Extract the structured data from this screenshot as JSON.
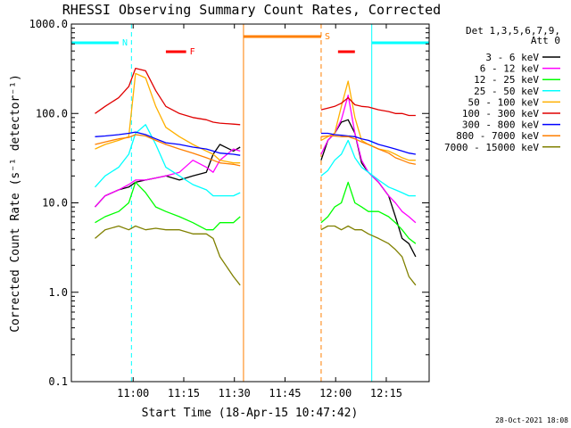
{
  "chart_data": {
    "type": "line",
    "title": "RHESSI Observing Summary Count Rates, Corrected",
    "xlabel": "Start Time (18-Apr-15 10:47:42)",
    "ylabel": "Corrected Count Rate (s⁻¹ detector⁻¹)",
    "y_scale": "log",
    "ylim": [
      0.1,
      1000
    ],
    "xlim_minutes_from_start": [
      -6,
      100
    ],
    "x_ticks": [
      {
        "label": "11:00",
        "value": 12.3
      },
      {
        "label": "11:15",
        "value": 27.3
      },
      {
        "label": "11:30",
        "value": 42.3
      },
      {
        "label": "11:45",
        "value": 57.3
      },
      {
        "label": "12:00",
        "value": 72.3
      },
      {
        "label": "12:15",
        "value": 87.3
      }
    ],
    "y_ticks": [
      {
        "label": "0.1",
        "value": 0.1
      },
      {
        "label": "1.0",
        "value": 1
      },
      {
        "label": "10.0",
        "value": 10
      },
      {
        "label": "100.0",
        "value": 100
      },
      {
        "label": "1000.0",
        "value": 1000
      }
    ],
    "legend": {
      "placement": "right",
      "header": [
        "Det 1,3,5,6,7,9,",
        "Att 0"
      ],
      "entries": [
        {
          "label": "3 - 6 keV",
          "color": "#000000"
        },
        {
          "label": "6 - 12 keV",
          "color": "#ff00ff"
        },
        {
          "label": "12 - 25 keV",
          "color": "#00ff00"
        },
        {
          "label": "25 - 50 keV",
          "color": "#00ffff"
        },
        {
          "label": "50 - 100 keV",
          "color": "#ffb000"
        },
        {
          "label": "100 - 300 keV",
          "color": "#e00000"
        },
        {
          "label": "300 - 800 keV",
          "color": "#0000ff"
        },
        {
          "label": "800 - 7000 keV",
          "color": "#ff7f00"
        },
        {
          "label": "7000 - 15000 keV",
          "color": "#808000"
        }
      ]
    },
    "intervals": [
      {
        "label": "N",
        "color": "#00ffff",
        "segments": [
          [
            -6,
            8
          ],
          [
            83,
            100
          ]
        ]
      },
      {
        "label": "F",
        "color": "#ff0000",
        "segments": [
          [
            22,
            28
          ],
          [
            73,
            78
          ]
        ]
      },
      {
        "label": "S",
        "color": "#ff7f00",
        "segments": [
          [
            45,
            68
          ]
        ]
      }
    ],
    "vertical_markers": [
      {
        "x": -6,
        "color": "#00ffff",
        "style": "solid"
      },
      {
        "x": 11.8,
        "color": "#00ffff",
        "style": "dashed"
      },
      {
        "x": 45,
        "color": "#ff7f00",
        "style": "solid"
      },
      {
        "x": 68,
        "color": "#ff7f00",
        "style": "dashed"
      },
      {
        "x": 83,
        "color": "#00ffff",
        "style": "solid"
      },
      {
        "x": 100,
        "color": "#00ffff",
        "style": "dashed"
      }
    ],
    "series": [
      {
        "name": "3 - 6 keV",
        "color": "#000000",
        "points": [
          [
            1,
            9
          ],
          [
            4,
            12
          ],
          [
            8,
            14
          ],
          [
            11,
            15
          ],
          [
            13,
            17
          ],
          [
            16,
            18
          ],
          [
            19,
            19
          ],
          [
            22,
            20
          ],
          [
            26,
            18
          ],
          [
            30,
            20
          ],
          [
            34,
            22
          ],
          [
            36,
            35
          ],
          [
            38,
            45
          ],
          [
            42,
            38
          ],
          [
            44,
            42
          ],
          null,
          [
            68,
            30
          ],
          [
            70,
            50
          ],
          [
            72,
            60
          ],
          [
            74,
            80
          ],
          [
            76,
            85
          ],
          [
            78,
            60
          ],
          [
            80,
            28
          ],
          [
            82,
            22
          ],
          [
            85,
            17
          ],
          [
            88,
            12
          ],
          [
            90,
            7
          ],
          [
            92,
            4
          ],
          [
            94,
            3.5
          ],
          [
            96,
            2.5
          ]
        ]
      },
      {
        "name": "6 - 12 keV",
        "color": "#ff00ff",
        "points": [
          [
            1,
            9
          ],
          [
            4,
            12
          ],
          [
            8,
            14
          ],
          [
            11,
            16
          ],
          [
            13,
            18
          ],
          [
            16,
            18
          ],
          [
            19,
            19
          ],
          [
            22,
            20
          ],
          [
            26,
            22
          ],
          [
            30,
            30
          ],
          [
            34,
            25
          ],
          [
            36,
            22
          ],
          [
            38,
            30
          ],
          [
            42,
            40
          ],
          [
            44,
            38
          ],
          null,
          [
            68,
            35
          ],
          [
            70,
            50
          ],
          [
            72,
            60
          ],
          [
            74,
            85
          ],
          [
            76,
            160
          ],
          [
            78,
            60
          ],
          [
            80,
            30
          ],
          [
            82,
            22
          ],
          [
            85,
            17
          ],
          [
            88,
            12
          ],
          [
            90,
            10
          ],
          [
            92,
            8
          ],
          [
            94,
            7
          ],
          [
            96,
            6
          ]
        ]
      },
      {
        "name": "12 - 25 keV",
        "color": "#00ff00",
        "points": [
          [
            1,
            6
          ],
          [
            4,
            7
          ],
          [
            8,
            8
          ],
          [
            11,
            10
          ],
          [
            13,
            17
          ],
          [
            16,
            13
          ],
          [
            19,
            9
          ],
          [
            22,
            8
          ],
          [
            26,
            7
          ],
          [
            30,
            6
          ],
          [
            34,
            5
          ],
          [
            36,
            5
          ],
          [
            38,
            6
          ],
          [
            42,
            6
          ],
          [
            44,
            7
          ],
          null,
          [
            68,
            6
          ],
          [
            70,
            7
          ],
          [
            72,
            9
          ],
          [
            74,
            10
          ],
          [
            76,
            17
          ],
          [
            78,
            10
          ],
          [
            80,
            9
          ],
          [
            82,
            8
          ],
          [
            85,
            8
          ],
          [
            88,
            7
          ],
          [
            90,
            6
          ],
          [
            92,
            5
          ],
          [
            94,
            4
          ],
          [
            96,
            3.5
          ]
        ]
      },
      {
        "name": "25 - 50 keV",
        "color": "#00ffff",
        "points": [
          [
            1,
            15
          ],
          [
            4,
            20
          ],
          [
            8,
            25
          ],
          [
            11,
            35
          ],
          [
            13,
            60
          ],
          [
            16,
            75
          ],
          [
            19,
            45
          ],
          [
            22,
            25
          ],
          [
            26,
            20
          ],
          [
            30,
            16
          ],
          [
            34,
            14
          ],
          [
            36,
            12
          ],
          [
            38,
            12
          ],
          [
            42,
            12
          ],
          [
            44,
            13
          ],
          null,
          [
            68,
            20
          ],
          [
            70,
            23
          ],
          [
            72,
            30
          ],
          [
            74,
            35
          ],
          [
            76,
            50
          ],
          [
            78,
            32
          ],
          [
            80,
            25
          ],
          [
            82,
            22
          ],
          [
            85,
            18
          ],
          [
            88,
            15
          ],
          [
            90,
            14
          ],
          [
            92,
            13
          ],
          [
            94,
            12
          ],
          [
            96,
            12
          ]
        ]
      },
      {
        "name": "50 - 100 keV",
        "color": "#ffb000",
        "points": [
          [
            1,
            40
          ],
          [
            4,
            45
          ],
          [
            8,
            50
          ],
          [
            11,
            55
          ],
          [
            13,
            280
          ],
          [
            16,
            250
          ],
          [
            19,
            120
          ],
          [
            22,
            70
          ],
          [
            26,
            55
          ],
          [
            30,
            45
          ],
          [
            34,
            38
          ],
          [
            36,
            35
          ],
          [
            38,
            30
          ],
          [
            42,
            28
          ],
          [
            44,
            28
          ],
          null,
          [
            68,
            50
          ],
          [
            70,
            55
          ],
          [
            72,
            60
          ],
          [
            74,
            120
          ],
          [
            76,
            230
          ],
          [
            78,
            90
          ],
          [
            80,
            50
          ],
          [
            82,
            45
          ],
          [
            85,
            40
          ],
          [
            88,
            38
          ],
          [
            90,
            35
          ],
          [
            92,
            32
          ],
          [
            94,
            30
          ],
          [
            96,
            30
          ]
        ]
      },
      {
        "name": "100 - 300 keV",
        "color": "#e00000",
        "points": [
          [
            1,
            100
          ],
          [
            4,
            120
          ],
          [
            8,
            150
          ],
          [
            11,
            200
          ],
          [
            13,
            320
          ],
          [
            16,
            300
          ],
          [
            19,
            180
          ],
          [
            22,
            120
          ],
          [
            26,
            100
          ],
          [
            30,
            90
          ],
          [
            34,
            85
          ],
          [
            36,
            80
          ],
          [
            38,
            78
          ],
          [
            42,
            76
          ],
          [
            44,
            75
          ],
          null,
          [
            68,
            110
          ],
          [
            70,
            115
          ],
          [
            72,
            120
          ],
          [
            74,
            130
          ],
          [
            76,
            150
          ],
          [
            78,
            125
          ],
          [
            80,
            120
          ],
          [
            82,
            118
          ],
          [
            85,
            110
          ],
          [
            88,
            105
          ],
          [
            90,
            100
          ],
          [
            92,
            100
          ],
          [
            94,
            95
          ],
          [
            96,
            95
          ]
        ]
      },
      {
        "name": "300 - 800 keV",
        "color": "#0000ff",
        "points": [
          [
            1,
            55
          ],
          [
            4,
            56
          ],
          [
            8,
            58
          ],
          [
            11,
            60
          ],
          [
            13,
            62
          ],
          [
            16,
            58
          ],
          [
            19,
            52
          ],
          [
            22,
            47
          ],
          [
            26,
            45
          ],
          [
            30,
            42
          ],
          [
            34,
            40
          ],
          [
            36,
            38
          ],
          [
            38,
            36
          ],
          [
            42,
            35
          ],
          [
            44,
            34
          ],
          null,
          [
            68,
            60
          ],
          [
            70,
            60
          ],
          [
            72,
            58
          ],
          [
            74,
            57
          ],
          [
            76,
            56
          ],
          [
            78,
            55
          ],
          [
            80,
            52
          ],
          [
            82,
            50
          ],
          [
            85,
            45
          ],
          [
            88,
            42
          ],
          [
            90,
            40
          ],
          [
            92,
            38
          ],
          [
            94,
            36
          ],
          [
            96,
            35
          ]
        ]
      },
      {
        "name": "800 - 7000 keV",
        "color": "#ff7f00",
        "points": [
          [
            1,
            45
          ],
          [
            4,
            48
          ],
          [
            8,
            52
          ],
          [
            11,
            54
          ],
          [
            13,
            58
          ],
          [
            16,
            56
          ],
          [
            19,
            50
          ],
          [
            22,
            45
          ],
          [
            26,
            40
          ],
          [
            30,
            36
          ],
          [
            34,
            32
          ],
          [
            36,
            30
          ],
          [
            38,
            28
          ],
          [
            42,
            27
          ],
          [
            44,
            26
          ],
          null,
          [
            68,
            55
          ],
          [
            70,
            56
          ],
          [
            72,
            56
          ],
          [
            74,
            55
          ],
          [
            76,
            55
          ],
          [
            78,
            52
          ],
          [
            80,
            48
          ],
          [
            82,
            45
          ],
          [
            85,
            40
          ],
          [
            88,
            36
          ],
          [
            90,
            32
          ],
          [
            92,
            30
          ],
          [
            94,
            28
          ],
          [
            96,
            27
          ]
        ]
      },
      {
        "name": "7000 - 15000 keV",
        "color": "#808000",
        "points": [
          [
            1,
            4
          ],
          [
            4,
            5
          ],
          [
            8,
            5.5
          ],
          [
            11,
            5
          ],
          [
            13,
            5.5
          ],
          [
            16,
            5
          ],
          [
            19,
            5.2
          ],
          [
            22,
            5
          ],
          [
            26,
            5
          ],
          [
            30,
            4.5
          ],
          [
            34,
            4.5
          ],
          [
            36,
            4
          ],
          [
            38,
            2.5
          ],
          [
            42,
            1.5
          ],
          [
            44,
            1.2
          ],
          null,
          [
            68,
            5
          ],
          [
            70,
            5.5
          ],
          [
            72,
            5.5
          ],
          [
            74,
            5
          ],
          [
            76,
            5.5
          ],
          [
            78,
            5
          ],
          [
            80,
            5
          ],
          [
            82,
            4.5
          ],
          [
            85,
            4
          ],
          [
            88,
            3.5
          ],
          [
            90,
            3
          ],
          [
            92,
            2.5
          ],
          [
            94,
            1.5
          ],
          [
            96,
            1.2
          ]
        ]
      }
    ]
  },
  "footer": {
    "timestamp": "28-Oct-2021 18:08"
  }
}
